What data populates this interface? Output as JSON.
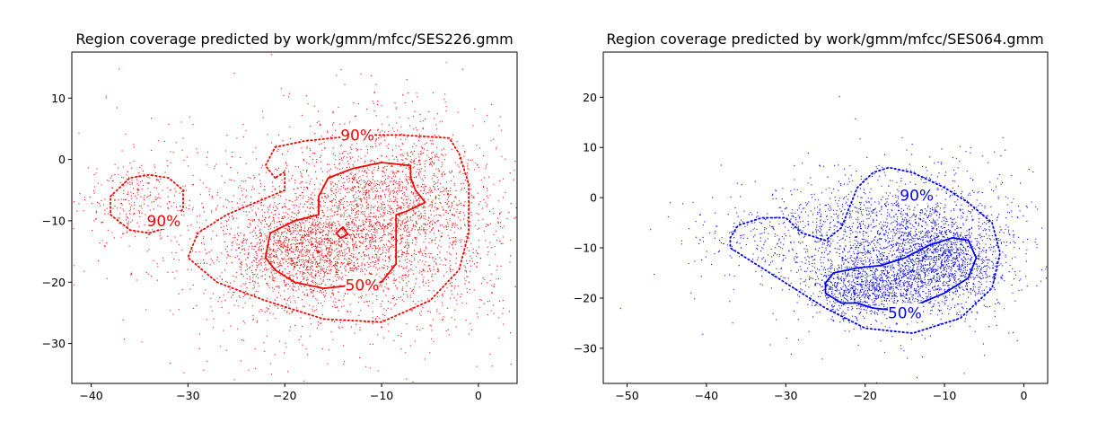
{
  "chart_data": [
    {
      "type": "scatter",
      "title": "Region coverage predicted by work/gmm/mfcc/SES226.gmm",
      "color": "#ff0000",
      "xlim": [
        -42,
        4
      ],
      "ylim": [
        -36.5,
        17.5
      ],
      "xticks": [
        -40,
        -30,
        -20,
        -10,
        0
      ],
      "yticks": [
        -30,
        -20,
        -10,
        0,
        10
      ],
      "clusters": [
        {
          "cx": -18,
          "cy": -15,
          "sx": 3.5,
          "sy": 3.5,
          "n": 900
        },
        {
          "cx": -9,
          "cy": -7,
          "sx": 5,
          "sy": 7,
          "n": 1600
        },
        {
          "cx": -14,
          "cy": -14,
          "sx": 9,
          "sy": 8,
          "n": 1800
        },
        {
          "cx": -35,
          "cy": -7,
          "sx": 2.5,
          "sy": 3,
          "n": 260
        },
        {
          "cx": -15,
          "cy": -10,
          "sx": 12,
          "sy": 11,
          "n": 450
        }
      ],
      "contours": [
        {
          "level": "90%",
          "style": "dotted",
          "label_at": [
            -12.5,
            4
          ],
          "points": [
            [
              -21,
              -3
            ],
            [
              -22,
              -1
            ],
            [
              -21,
              2
            ],
            [
              -18,
              3
            ],
            [
              -15,
              3.5
            ],
            [
              -12,
              4
            ],
            [
              -8,
              4
            ],
            [
              -3,
              3.5
            ],
            [
              -2,
              1
            ],
            [
              -1,
              -4
            ],
            [
              -1,
              -12
            ],
            [
              -2,
              -18
            ],
            [
              -5,
              -23
            ],
            [
              -10,
              -26.5
            ],
            [
              -16,
              -26
            ],
            [
              -22,
              -23
            ],
            [
              -27,
              -20
            ],
            [
              -30,
              -16
            ],
            [
              -29,
              -12
            ],
            [
              -26,
              -9
            ],
            [
              -23,
              -7
            ],
            [
              -20,
              -5
            ],
            [
              -20,
              -2
            ],
            [
              -21,
              -3
            ]
          ]
        },
        {
          "level": "90%",
          "style": "dotted",
          "label_at": [
            -32.5,
            -10
          ],
          "points": [
            [
              -38,
              -6
            ],
            [
              -36,
              -3
            ],
            [
              -34,
              -2.5
            ],
            [
              -32,
              -3
            ],
            [
              -30.5,
              -5
            ],
            [
              -30.5,
              -8
            ],
            [
              -32,
              -11
            ],
            [
              -34,
              -12
            ],
            [
              -36,
              -11.5
            ],
            [
              -38,
              -9
            ],
            [
              -38,
              -6
            ]
          ]
        },
        {
          "level": "50%",
          "style": "solid",
          "label_at": [
            -12,
            -20.5
          ],
          "points": [
            [
              -15.5,
              -3
            ],
            [
              -13,
              -1.5
            ],
            [
              -10,
              -0.5
            ],
            [
              -7,
              -1
            ],
            [
              -7,
              -3
            ],
            [
              -6.5,
              -5
            ],
            [
              -5.5,
              -7
            ],
            [
              -7.5,
              -8.5
            ],
            [
              -8.5,
              -9
            ],
            [
              -8.5,
              -12
            ],
            [
              -8.5,
              -17
            ],
            [
              -10,
              -20
            ],
            [
              -13,
              -20.5
            ],
            [
              -16,
              -21
            ],
            [
              -19,
              -20
            ],
            [
              -21,
              -18
            ],
            [
              -22,
              -16
            ],
            [
              -21.5,
              -12
            ],
            [
              -19,
              -10
            ],
            [
              -16.5,
              -9
            ],
            [
              -16.5,
              -6
            ],
            [
              -15.5,
              -3
            ]
          ]
        },
        {
          "level": "",
          "style": "solid",
          "label_at": null,
          "points": [
            [
              -14,
              -11
            ],
            [
              -13.5,
              -12.2
            ],
            [
              -14.2,
              -12.8
            ],
            [
              -14.7,
              -12
            ],
            [
              -14,
              -11
            ]
          ]
        }
      ]
    },
    {
      "type": "scatter",
      "title": "Region coverage predicted by work/gmm/mfcc/SES064.gmm",
      "color": "#0000ff",
      "xlim": [
        -53,
        3
      ],
      "ylim": [
        -37,
        29
      ],
      "xticks": [
        -50,
        -40,
        -30,
        -20,
        -10,
        0
      ],
      "yticks": [
        -30,
        -20,
        -10,
        0,
        10,
        20
      ],
      "clusters": [
        {
          "cx": -20,
          "cy": -18,
          "sx": 3.5,
          "sy": 3,
          "n": 800
        },
        {
          "cx": -11,
          "cy": -13,
          "sx": 4,
          "sy": 5,
          "n": 1300
        },
        {
          "cx": -15,
          "cy": -8,
          "sx": 7,
          "sy": 7,
          "n": 1500
        },
        {
          "cx": -30,
          "cy": -8,
          "sx": 6,
          "sy": 4,
          "n": 350
        },
        {
          "cx": -17,
          "cy": -12,
          "sx": 12,
          "sy": 10,
          "n": 300
        }
      ],
      "contours": [
        {
          "level": "90%",
          "style": "dotted",
          "label_at": [
            -13.5,
            0.5
          ],
          "points": [
            [
              -37,
              -8
            ],
            [
              -36,
              -5.5
            ],
            [
              -33,
              -4
            ],
            [
              -30,
              -4
            ],
            [
              -28,
              -7
            ],
            [
              -25,
              -8.5
            ],
            [
              -23,
              -6
            ],
            [
              -22,
              -2
            ],
            [
              -21,
              2
            ],
            [
              -19,
              5
            ],
            [
              -17,
              6
            ],
            [
              -14,
              5
            ],
            [
              -10,
              2
            ],
            [
              -7,
              -1
            ],
            [
              -4,
              -5
            ],
            [
              -3,
              -11
            ],
            [
              -4,
              -18
            ],
            [
              -8,
              -24
            ],
            [
              -14,
              -27
            ],
            [
              -20,
              -26
            ],
            [
              -25,
              -22
            ],
            [
              -30,
              -17
            ],
            [
              -34,
              -13
            ],
            [
              -37,
              -10
            ],
            [
              -37,
              -8
            ]
          ]
        },
        {
          "level": "50%",
          "style": "solid",
          "label_at": [
            -15,
            -23
          ],
          "points": [
            [
              -25,
              -17
            ],
            [
              -24,
              -15
            ],
            [
              -21,
              -14
            ],
            [
              -18,
              -13.5
            ],
            [
              -15,
              -12
            ],
            [
              -12,
              -9.5
            ],
            [
              -9,
              -8
            ],
            [
              -7,
              -8.5
            ],
            [
              -6,
              -12
            ],
            [
              -7,
              -16
            ],
            [
              -10,
              -19
            ],
            [
              -13,
              -21
            ],
            [
              -16,
              -22.5
            ],
            [
              -19,
              -22
            ],
            [
              -21,
              -21
            ],
            [
              -23,
              -21
            ],
            [
              -25,
              -19
            ],
            [
              -25,
              -17
            ]
          ]
        }
      ]
    }
  ]
}
